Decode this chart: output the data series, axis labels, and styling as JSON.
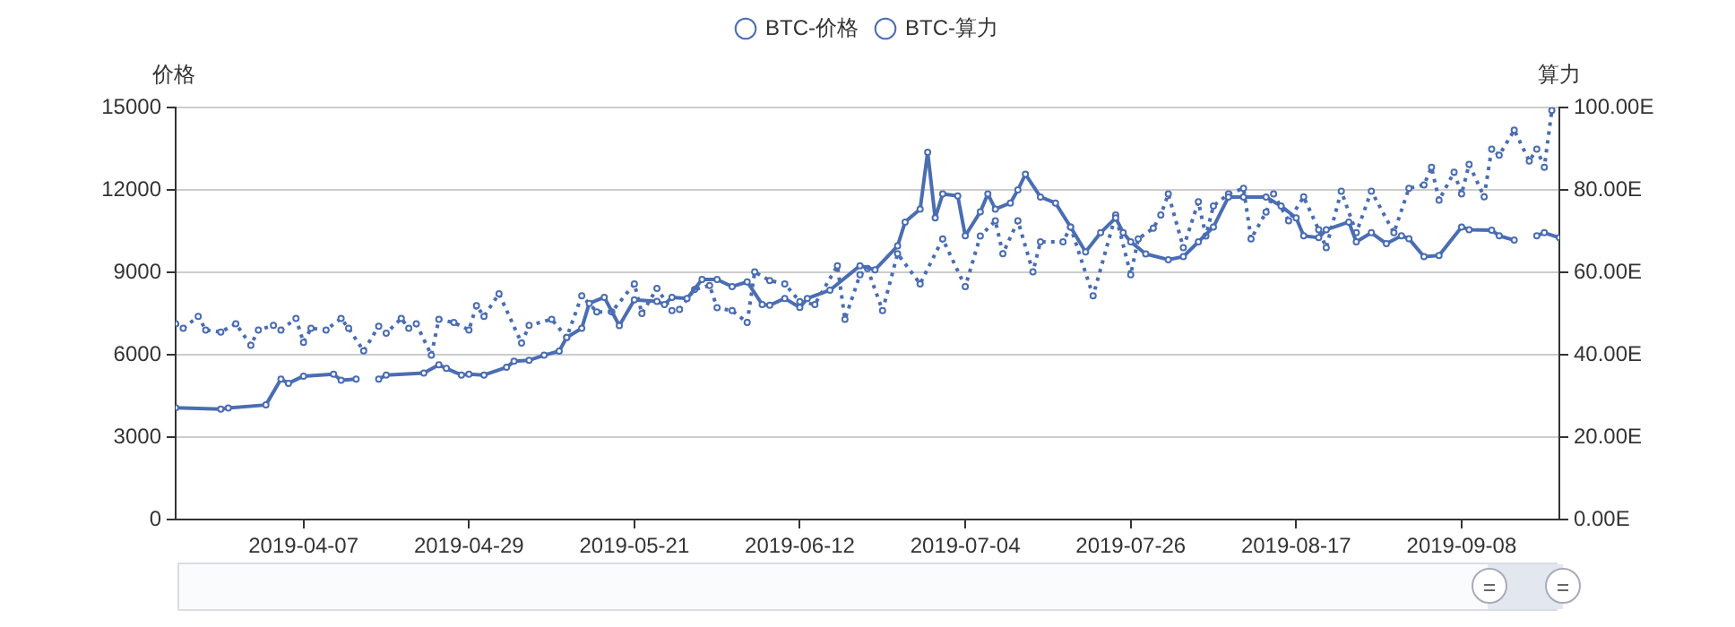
{
  "chart_data": {
    "type": "line",
    "ylabel": "价格",
    "y2label": "算力",
    "legend": "top",
    "grid": "y",
    "marker": "circle",
    "xlim": [
      "2019-03-21",
      "2019-09-21"
    ],
    "xticks": [
      "2019-04-07",
      "2019-04-29",
      "2019-05-21",
      "2019-06-12",
      "2019-07-04",
      "2019-07-26",
      "2019-08-17",
      "2019-09-08"
    ],
    "ylim": [
      0,
      15000
    ],
    "yticks": [
      0,
      3000,
      6000,
      9000,
      12000,
      15000
    ],
    "y2lim": [
      0,
      100
    ],
    "y2ticks": [
      {
        "value": 0,
        "label": "0.00E"
      },
      {
        "value": 20,
        "label": "20.00E"
      },
      {
        "value": 40,
        "label": "40.00E"
      },
      {
        "value": 60,
        "label": "60.00E"
      },
      {
        "value": 80,
        "label": "80.00E"
      },
      {
        "value": 100,
        "label": "100.00E"
      }
    ],
    "series": [
      {
        "name": "BTC-价格",
        "color": "#4a6db3",
        "line_style": "solid",
        "x": [
          "2019-03-21",
          "2019-03-27",
          "2019-03-28",
          "2019-04-02",
          "2019-04-04",
          "2019-04-05",
          "2019-04-07",
          "2019-04-11",
          "2019-04-12",
          "2019-04-14",
          "2019-04-15",
          "2019-04-17",
          "2019-04-18",
          "2019-04-23",
          "2019-04-25",
          "2019-04-26",
          "2019-04-28",
          "2019-04-29",
          "2019-05-01",
          "2019-05-04",
          "2019-05-05",
          "2019-05-07",
          "2019-05-09",
          "2019-05-11",
          "2019-05-12",
          "2019-05-14",
          "2019-05-15",
          "2019-05-17",
          "2019-05-19",
          "2019-05-21",
          "2019-05-24",
          "2019-05-25",
          "2019-05-26",
          "2019-05-28",
          "2019-05-30",
          "2019-06-01",
          "2019-06-03",
          "2019-06-05",
          "2019-06-07",
          "2019-06-08",
          "2019-06-10",
          "2019-06-12",
          "2019-06-13",
          "2019-06-16",
          "2019-06-20",
          "2019-06-22",
          "2019-06-25",
          "2019-06-26",
          "2019-06-28",
          "2019-06-29",
          "2019-06-30",
          "2019-07-01",
          "2019-07-03",
          "2019-07-04",
          "2019-07-06",
          "2019-07-07",
          "2019-07-08",
          "2019-07-10",
          "2019-07-11",
          "2019-07-12",
          "2019-07-14",
          "2019-07-16",
          "2019-07-18",
          "2019-07-20",
          "2019-07-22",
          "2019-07-24",
          "2019-07-25",
          "2019-07-26",
          "2019-07-28",
          "2019-07-31",
          "2019-08-02",
          "2019-08-04",
          "2019-08-06",
          "2019-08-08",
          "2019-08-10",
          "2019-08-13",
          "2019-08-15",
          "2019-08-17",
          "2019-08-18",
          "2019-08-20",
          "2019-08-21",
          "2019-08-24",
          "2019-08-25",
          "2019-08-27",
          "2019-08-29",
          "2019-08-31",
          "2019-09-01",
          "2019-09-03",
          "2019-09-05",
          "2019-09-08",
          "2019-09-09",
          "2019-09-12",
          "2019-09-13",
          "2019-09-15",
          "2019-09-16",
          "2019-09-18",
          "2019-09-19",
          "2019-09-21"
        ],
        "values": [
          4070,
          4020,
          4060,
          4170,
          5110,
          4960,
          5220,
          5290,
          5070,
          5110,
          null,
          5110,
          5260,
          5330,
          5630,
          5500,
          5260,
          5290,
          5260,
          5540,
          5760,
          5800,
          5980,
          6130,
          6630,
          6960,
          7870,
          8090,
          7060,
          8000,
          7940,
          7830,
          8090,
          8050,
          8740,
          8740,
          8480,
          8650,
          7830,
          7800,
          8050,
          7720,
          8050,
          8350,
          9240,
          9090,
          9960,
          10830,
          11300,
          13370,
          10980,
          11850,
          11780,
          10330,
          11200,
          11850,
          11300,
          11520,
          12000,
          12570,
          11740,
          11520,
          10650,
          9740,
          10440,
          10980,
          10440,
          10110,
          9670,
          9460,
          9570,
          10110,
          10650,
          11740,
          11740,
          11740,
          11410,
          10980,
          10330,
          10260,
          10550,
          10830,
          10110,
          10440,
          10040,
          10330,
          10220,
          9570,
          9610,
          10650,
          10550,
          10530,
          10330,
          10170,
          null,
          10330,
          10440,
          10260
        ]
      },
      {
        "name": "BTC-算力",
        "color": "#4a6db3",
        "line_style": "dotted",
        "axis": "y2",
        "x": [
          "2019-03-21",
          "2019-03-22",
          "2019-03-24",
          "2019-03-25",
          "2019-03-27",
          "2019-03-29",
          "2019-03-31",
          "2019-04-01",
          "2019-04-03",
          "2019-04-04",
          "2019-04-06",
          "2019-04-07",
          "2019-04-08",
          "2019-04-10",
          "2019-04-12",
          "2019-04-13",
          "2019-04-15",
          "2019-04-17",
          "2019-04-18",
          "2019-04-20",
          "2019-04-21",
          "2019-04-22",
          "2019-04-24",
          "2019-04-25",
          "2019-04-27",
          "2019-04-29",
          "2019-04-30",
          "2019-05-01",
          "2019-05-03",
          "2019-05-06",
          "2019-05-07",
          "2019-05-10",
          "2019-05-12",
          "2019-05-14",
          "2019-05-16",
          "2019-05-18",
          "2019-05-21",
          "2019-05-22",
          "2019-05-24",
          "2019-05-26",
          "2019-05-27",
          "2019-05-29",
          "2019-05-31",
          "2019-06-01",
          "2019-06-03",
          "2019-06-05",
          "2019-06-06",
          "2019-06-08",
          "2019-06-10",
          "2019-06-12",
          "2019-06-14",
          "2019-06-17",
          "2019-06-18",
          "2019-06-20",
          "2019-06-21",
          "2019-06-23",
          "2019-06-25",
          "2019-06-28",
          "2019-07-01",
          "2019-07-04",
          "2019-07-06",
          "2019-07-08",
          "2019-07-09",
          "2019-07-11",
          "2019-07-13",
          "2019-07-14",
          "2019-07-17",
          "2019-07-18",
          "2019-07-21",
          "2019-07-24",
          "2019-07-26",
          "2019-07-27",
          "2019-07-29",
          "2019-07-30",
          "2019-07-31",
          "2019-08-02",
          "2019-08-04",
          "2019-08-05",
          "2019-08-06",
          "2019-08-08",
          "2019-08-10",
          "2019-08-11",
          "2019-08-13",
          "2019-08-14",
          "2019-08-16",
          "2019-08-18",
          "2019-08-20",
          "2019-08-21",
          "2019-08-23",
          "2019-08-25",
          "2019-08-27",
          "2019-08-30",
          "2019-09-01",
          "2019-09-03",
          "2019-09-04",
          "2019-09-05",
          "2019-09-07",
          "2019-09-08",
          "2019-09-09",
          "2019-09-11",
          "2019-09-12",
          "2019-09-13",
          "2019-09-15",
          "2019-09-17",
          "2019-09-18",
          "2019-09-19",
          "2019-09-20"
        ],
        "values": [
          47.5,
          46.4,
          49.3,
          46.0,
          45.5,
          47.5,
          42.3,
          46.0,
          47.1,
          46.0,
          48.8,
          43.0,
          46.4,
          46.0,
          48.8,
          46.4,
          40.9,
          46.9,
          45.2,
          48.8,
          46.4,
          47.5,
          39.9,
          48.6,
          47.8,
          46.0,
          51.9,
          49.3,
          54.8,
          42.8,
          47.1,
          48.6,
          44.2,
          54.3,
          50.4,
          50.4,
          57.2,
          50.0,
          56.1,
          50.7,
          51.0,
          55.8,
          56.8,
          51.4,
          50.7,
          47.8,
          60.1,
          58.0,
          57.2,
          52.9,
          52.2,
          61.6,
          48.6,
          59.4,
          60.9,
          50.7,
          64.5,
          57.2,
          68.1,
          56.5,
          68.8,
          72.5,
          64.5,
          72.5,
          60.1,
          67.4,
          67.4,
          71.0,
          54.3,
          73.9,
          59.4,
          68.1,
          70.7,
          73.9,
          79.0,
          66.0,
          77.1,
          68.8,
          76.1,
          79.0,
          80.4,
          68.1,
          74.6,
          79.0,
          72.5,
          78.3,
          70.3,
          66.0,
          79.7,
          69.6,
          79.7,
          69.6,
          80.4,
          81.2,
          85.5,
          77.5,
          84.3,
          79.0,
          86.2,
          78.3,
          89.9,
          88.4,
          94.5,
          87.0,
          89.9,
          85.5,
          99.3
        ]
      }
    ]
  }
}
